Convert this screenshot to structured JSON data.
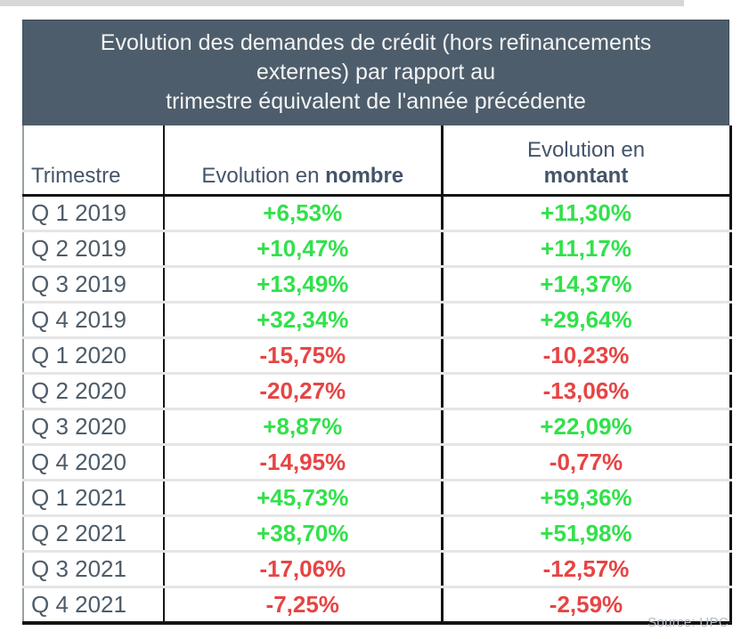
{
  "colors": {
    "title_bg": "#4e5d6b",
    "title_text": "#f2f4f5",
    "header_text": "#44546a",
    "quarter_text": "#4e5c69",
    "positive": "#32e14b",
    "negative": "#e74444",
    "row_divider": "#e5e5e5",
    "table_border": "#141414",
    "source_text": "#b3bac6"
  },
  "table": {
    "title_lines": [
      "Evolution des demandes de crédit (hors refinancements",
      "externes) par rapport au",
      "trimestre équivalent de l'année précédente"
    ],
    "columns": [
      {
        "label": "Trimestre"
      },
      {
        "prefix": "Evolution en",
        "bold": "nombre"
      },
      {
        "prefix": "Evolution en",
        "bold": "montant"
      }
    ],
    "rows": [
      {
        "quarter": "Q 1 2019",
        "nombre": "+6,53%",
        "montant": "+11,30%"
      },
      {
        "quarter": "Q 2 2019",
        "nombre": "+10,47%",
        "montant": "+11,17%"
      },
      {
        "quarter": "Q 3 2019",
        "nombre": "+13,49%",
        "montant": "+14,37%"
      },
      {
        "quarter": "Q 4 2019",
        "nombre": "+32,34%",
        "montant": "+29,64%"
      },
      {
        "quarter": "Q 1 2020",
        "nombre": "-15,75%",
        "montant": "-10,23%"
      },
      {
        "quarter": "Q 2 2020",
        "nombre": "-20,27%",
        "montant": "-13,06%"
      },
      {
        "quarter": "Q 3 2020",
        "nombre": "+8,87%",
        "montant": "+22,09%"
      },
      {
        "quarter": "Q 4 2020",
        "nombre": "-14,95%",
        "montant": "-0,77%"
      },
      {
        "quarter": "Q 1 2021",
        "nombre": "+45,73%",
        "montant": "+59,36%"
      },
      {
        "quarter": "Q 2 2021",
        "nombre": "+38,70%",
        "montant": "+51,98%"
      },
      {
        "quarter": "Q 3 2021",
        "nombre": "-17,06%",
        "montant": "-12,57%"
      },
      {
        "quarter": "Q 4 2021",
        "nombre": "-7,25%",
        "montant": "-2,59%"
      }
    ]
  },
  "footer": {
    "source": "Source: UPC"
  },
  "chart_data": {
    "type": "table",
    "title": "Evolution des demandes de crédit (hors refinancements externes) par rapport au trimestre équivalent de l'année précédente",
    "categories": [
      "Q 1 2019",
      "Q 2 2019",
      "Q 3 2019",
      "Q 4 2019",
      "Q 1 2020",
      "Q 2 2020",
      "Q 3 2020",
      "Q 4 2020",
      "Q 1 2021",
      "Q 2 2021",
      "Q 3 2021",
      "Q 4 2021"
    ],
    "series": [
      {
        "name": "Evolution en nombre",
        "values": [
          6.53,
          10.47,
          13.49,
          32.34,
          -15.75,
          -20.27,
          8.87,
          -14.95,
          45.73,
          38.7,
          -17.06,
          -7.25
        ]
      },
      {
        "name": "Evolution en montant",
        "values": [
          11.3,
          11.17,
          14.37,
          29.64,
          -10.23,
          -13.06,
          22.09,
          -0.77,
          59.36,
          51.98,
          -12.57,
          -2.59
        ]
      }
    ],
    "unit": "%",
    "value_color_rule": "positive green, negative red",
    "source": "Source: UPC"
  }
}
